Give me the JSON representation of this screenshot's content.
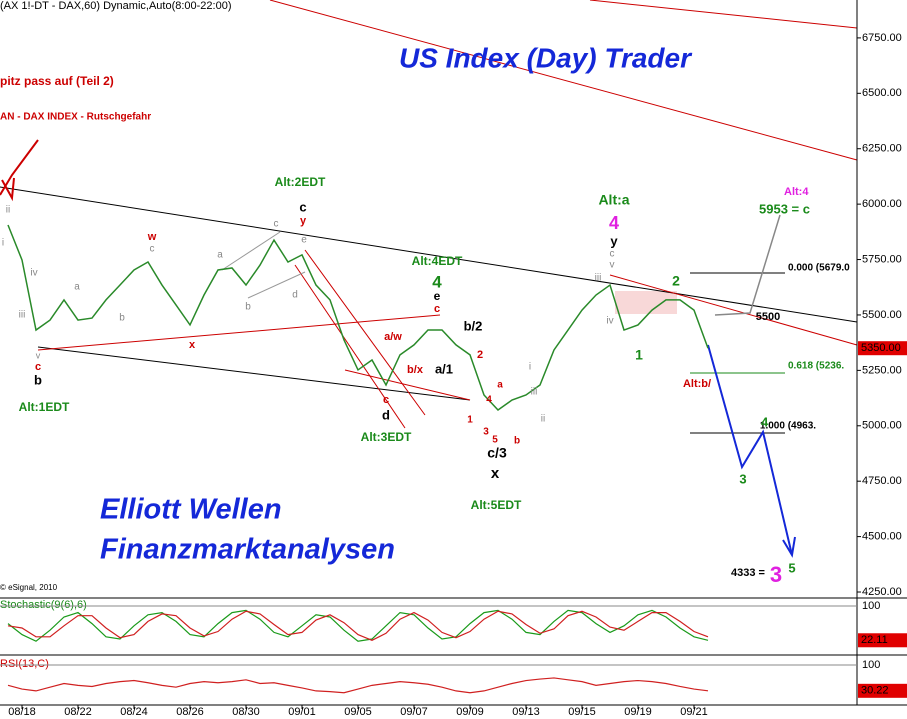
{
  "header": "(AX 1!-DT - DAX,60) Dynamic,Auto(8:00-22:00)",
  "chart_data": {
    "type": "line",
    "title": "US Index (Day) Trader",
    "color": "#2a8a2a",
    "categories": [
      null,
      "08/18",
      null,
      null,
      null,
      "08/22",
      null,
      null,
      null,
      "08/24",
      null,
      null,
      null,
      "08/26",
      null,
      null,
      null,
      "08/30",
      null,
      null,
      null,
      "09/01",
      null,
      null,
      null,
      "09/05",
      null,
      null,
      null,
      "09/07",
      null,
      null,
      null,
      "09/09",
      null,
      null,
      null,
      "09/13",
      null,
      null,
      null,
      "09/15",
      null,
      null,
      null,
      "09/19",
      null,
      null,
      null,
      "09/21",
      null
    ],
    "values": [
      5906,
      5748,
      5432,
      5477,
      5568,
      5477,
      5486,
      5568,
      5635,
      5703,
      5739,
      5635,
      5545,
      5455,
      5590,
      5703,
      5712,
      5635,
      5725,
      5838,
      5739,
      5771,
      5635,
      5568,
      5387,
      5252,
      5297,
      5184,
      5320,
      5365,
      5432,
      5432,
      5365,
      5320,
      5139,
      5071,
      5116,
      5139,
      5184,
      5342,
      5432,
      5522,
      5590,
      5635,
      5432,
      5455,
      5522,
      5568,
      5568,
      5522,
      5350
    ],
    "last_label": "5350.00",
    "ylim": [
      4223,
      6921
    ],
    "yticks": [
      {
        "value": 4250,
        "label": "4250.00"
      },
      {
        "value": 4500,
        "label": "4500.00"
      },
      {
        "value": 4750,
        "label": "4750.00"
      },
      {
        "value": 5000,
        "label": "5000.00"
      },
      {
        "value": 5250,
        "label": "5250.00"
      },
      {
        "value": 5500,
        "label": "5500.00"
      },
      {
        "value": 5750,
        "label": "5750.00"
      },
      {
        "value": 6000,
        "label": "6000.00"
      },
      {
        "value": 6250,
        "label": "6250.00"
      },
      {
        "value": 6500,
        "label": "6500.00"
      },
      {
        "value": 6750,
        "label": "6750.00"
      }
    ],
    "copyright": "© eSignal, 2010",
    "indicators": [
      {
        "name": "Stochastic(9(6),6)",
        "ylim": [
          0,
          100
        ],
        "yticks": [
          100
        ],
        "last_label": "22.11",
        "series": [
          {
            "color": "#1a9a1a",
            "values": [
              60,
              35,
              20,
              45,
              75,
              85,
              60,
              30,
              25,
              55,
              80,
              85,
              65,
              35,
              30,
              60,
              85,
              90,
              70,
              40,
              30,
              55,
              80,
              75,
              45,
              20,
              25,
              55,
              85,
              80,
              50,
              25,
              30,
              60,
              85,
              90,
              70,
              40,
              35,
              65,
              90,
              85,
              60,
              40,
              55,
              80,
              90,
              75,
              50,
              30,
              22.11
            ]
          },
          {
            "color": "#d02020",
            "values": [
              55,
              50,
              30,
              30,
              55,
              78,
              78,
              50,
              28,
              35,
              65,
              82,
              78,
              50,
              32,
              42,
              70,
              88,
              82,
              58,
              35,
              40,
              68,
              80,
              62,
              35,
              22,
              38,
              70,
              85,
              68,
              40,
              28,
              42,
              70,
              88,
              82,
              58,
              38,
              48,
              78,
              88,
              75,
              52,
              45,
              65,
              85,
              85,
              65,
              42,
              30
            ]
          }
        ]
      },
      {
        "name": "RSI(13,C)",
        "ylim": [
          0,
          100
        ],
        "yticks": [
          100
        ],
        "last_label": "30.22",
        "series": [
          {
            "color": "#d02020",
            "values": [
              45,
              35,
              30,
              40,
              50,
              45,
              42,
              50,
              55,
              58,
              52,
              45,
              40,
              50,
              55,
              52,
              55,
              60,
              50,
              52,
              45,
              38,
              30,
              28,
              25,
              35,
              45,
              50,
              55,
              52,
              48,
              40,
              30,
              25,
              30,
              40,
              50,
              58,
              62,
              65,
              60,
              55,
              45,
              50,
              55,
              58,
              55,
              50,
              42,
              35,
              30.22
            ]
          }
        ]
      }
    ]
  },
  "annotations": [
    {
      "text": "pitz pass auf (Teil 2)",
      "color": "#cc0000"
    },
    {
      "text": "AN - DAX INDEX - Rutschgefahr",
      "color": "#cc0000"
    },
    {
      "text": "Alt:2EDT",
      "color": "#1a8a1a"
    },
    {
      "text": "c",
      "color": "#000"
    },
    {
      "text": "y",
      "color": "#cc0000"
    },
    {
      "text": "Alt:1EDT",
      "color": "#1a8a1a"
    },
    {
      "text": "v",
      "color": "#888"
    },
    {
      "text": "c",
      "color": "#cc0000"
    },
    {
      "text": "b",
      "color": "#000"
    },
    {
      "text": "ii",
      "color": "#888"
    },
    {
      "text": "i",
      "color": "#888"
    },
    {
      "text": "iv",
      "color": "#888"
    },
    {
      "text": "iii",
      "color": "#888"
    },
    {
      "text": "a",
      "color": "#888"
    },
    {
      "text": "b",
      "color": "#888"
    },
    {
      "text": "w",
      "color": "#cc0000"
    },
    {
      "text": "c",
      "color": "#888"
    },
    {
      "text": "x",
      "color": "#cc0000"
    },
    {
      "text": "a",
      "color": "#888"
    },
    {
      "text": "b",
      "color": "#888"
    },
    {
      "text": "c",
      "color": "#888"
    },
    {
      "text": "e",
      "color": "#888"
    },
    {
      "text": "d",
      "color": "#888"
    },
    {
      "text": "Alt:4EDT",
      "color": "#1a8a1a"
    },
    {
      "text": "4",
      "color": "#1a8a1a"
    },
    {
      "text": "e",
      "color": "#000"
    },
    {
      "text": "c",
      "color": "#cc0000"
    },
    {
      "text": "a/w",
      "color": "#cc0000"
    },
    {
      "text": "b/2",
      "color": "#000"
    },
    {
      "text": "2",
      "color": "#cc0000"
    },
    {
      "text": "b/x",
      "color": "#cc0000"
    },
    {
      "text": "a/1",
      "color": "#000"
    },
    {
      "text": "c",
      "color": "#cc0000"
    },
    {
      "text": "d",
      "color": "#000"
    },
    {
      "text": "Alt:3EDT",
      "color": "#1a8a1a"
    },
    {
      "text": "1",
      "color": "#cc0000"
    },
    {
      "text": "4",
      "color": "#cc0000"
    },
    {
      "text": "a",
      "color": "#cc0000"
    },
    {
      "text": "3",
      "color": "#cc0000"
    },
    {
      "text": "5",
      "color": "#cc0000"
    },
    {
      "text": "b",
      "color": "#cc0000"
    },
    {
      "text": "c/3",
      "color": "#000"
    },
    {
      "text": "x",
      "color": "#000"
    },
    {
      "text": "Alt:5EDT",
      "color": "#1a8a1a"
    },
    {
      "text": "i",
      "color": "#888"
    },
    {
      "text": "iii",
      "color": "#888"
    },
    {
      "text": "ii",
      "color": "#888"
    },
    {
      "text": "Alt:a",
      "color": "#1a8a1a"
    },
    {
      "text": "4",
      "color": "#e020e0"
    },
    {
      "text": "y",
      "color": "#000"
    },
    {
      "text": "c",
      "color": "#888"
    },
    {
      "text": "v",
      "color": "#888"
    },
    {
      "text": "iii",
      "color": "#888"
    },
    {
      "text": "iv",
      "color": "#888"
    },
    {
      "text": "1",
      "color": "#1a8a1a"
    },
    {
      "text": "2",
      "color": "#1a8a1a"
    },
    {
      "text": "Alt:b/",
      "color": "#cc0000"
    },
    {
      "text": "Alt:4",
      "color": "#e020e0"
    },
    {
      "text": "5953 = c",
      "color": "#1a8a1a"
    },
    {
      "text": "0.000 (5679.0",
      "color": "#000"
    },
    {
      "text": "0.618 (5236.",
      "color": "#1a8a1a"
    },
    {
      "text": "1.000 (4963.",
      "color": "#000"
    },
    {
      "text": "5500",
      "color": "#000"
    },
    {
      "text": "3",
      "color": "#1a8a1a"
    },
    {
      "text": "4",
      "color": "#1a8a1a"
    },
    {
      "text": "4333 =",
      "color": "#000"
    },
    {
      "text": "3",
      "color": "#e020e0"
    },
    {
      "text": "5",
      "color": "#1a8a1a"
    },
    {
      "text": "Elliott Wellen",
      "color": "#1428d8"
    },
    {
      "text": "Finanzmarktanalysen",
      "color": "#1428d8"
    }
  ]
}
